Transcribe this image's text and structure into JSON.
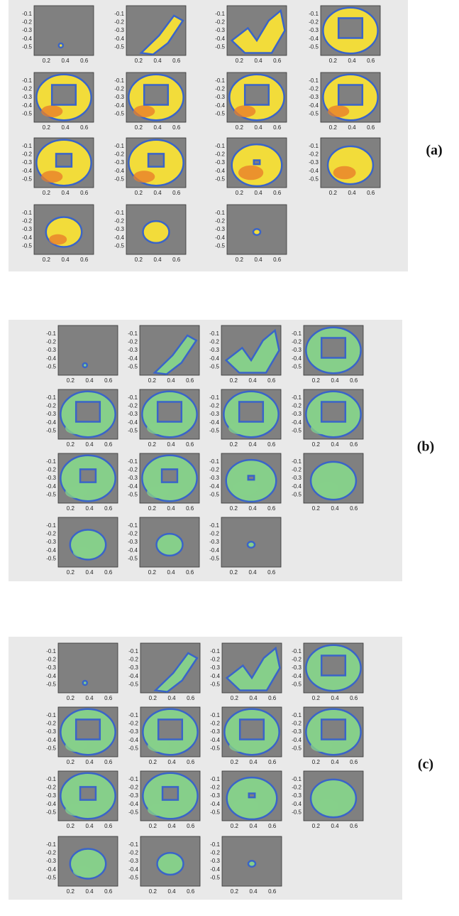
{
  "panels": [
    {
      "label": "(a)",
      "xticks": [
        0.2,
        0.4,
        0.6
      ],
      "yticks": [
        -0.1,
        -0.2,
        -0.3,
        -0.4,
        -0.5
      ],
      "xlim": [
        0.07,
        0.7
      ],
      "ylim": [
        -0.6,
        0
      ]
    },
    {
      "label": "(b)",
      "xticks": [
        0.2,
        0.4,
        0.6
      ],
      "yticks": [
        -0.1,
        -0.2,
        -0.3,
        -0.4,
        -0.5
      ],
      "xlim": [
        0.07,
        0.7
      ],
      "ylim": [
        -0.6,
        0
      ]
    },
    {
      "label": "(c)",
      "xticks": [
        0.2,
        0.4,
        0.6
      ],
      "yticks": [
        -0.1,
        -0.2,
        -0.3,
        -0.4,
        -0.5
      ],
      "xlim": [
        0.07,
        0.7
      ],
      "ylim": [
        -0.6,
        0
      ]
    }
  ]
}
